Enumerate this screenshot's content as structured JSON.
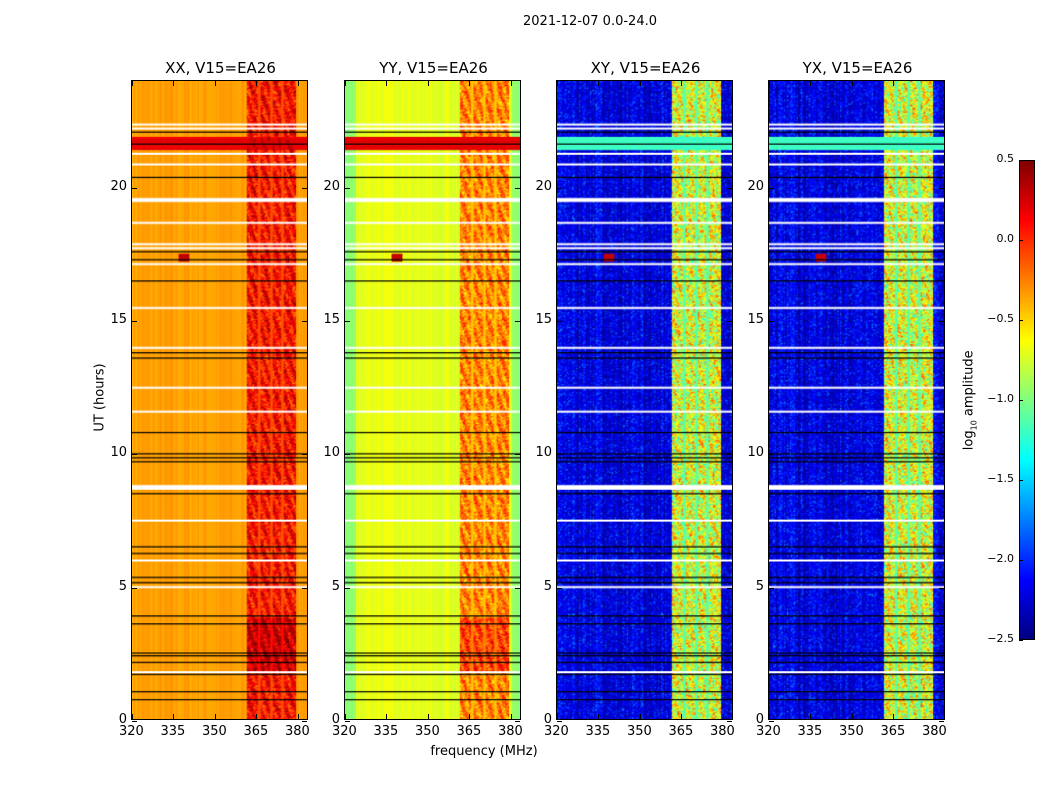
{
  "chart_data": {
    "type": "heatmap",
    "title": "2021-12-07 0.0-24.0",
    "xlabel": "frequency (MHz)",
    "ylabel": "UT (hours)",
    "xlim": [
      320,
      384
    ],
    "ylim": [
      0,
      24
    ],
    "xticks": [
      "320",
      "335",
      "350",
      "365",
      "380"
    ],
    "xtick_values": [
      320,
      335,
      350,
      365,
      380
    ],
    "yticks": [
      "0",
      "5",
      "10",
      "15",
      "20"
    ],
    "ytick_values": [
      0,
      5,
      10,
      15,
      20
    ],
    "panels": [
      {
        "title": "XX, V15=EA26",
        "pol": "XX",
        "base_level": -0.35,
        "band_level": 0.05
      },
      {
        "title": "YY, V15=EA26",
        "pol": "YY",
        "base_level": -0.7,
        "band_level": -0.3
      },
      {
        "title": "XY, V15=EA26",
        "pol": "XY",
        "base_level": -2.35,
        "band_level": -0.8
      },
      {
        "title": "YX, V15=EA26",
        "pol": "YX",
        "base_level": -2.35,
        "band_level": -0.8
      }
    ],
    "bright_band_mhz": [
      362,
      380
    ],
    "flagged_white_hours": [
      22.4,
      22.25,
      21.3,
      20.9,
      19.6,
      18.7,
      17.9,
      17.75,
      17.15,
      15.5,
      14.0,
      12.5,
      11.6,
      8.8,
      8.7,
      7.5,
      6.0,
      5.0,
      1.8
    ],
    "flagged_black_hours": [
      22.1,
      21.65,
      20.4,
      17.6,
      17.3,
      16.5,
      13.8,
      13.6,
      10.8,
      10.0,
      9.85,
      9.7,
      8.5,
      6.5,
      6.25,
      5.35,
      5.15,
      3.9,
      3.6,
      2.5,
      2.4,
      2.15,
      1.7,
      1.05,
      0.75
    ],
    "colorbar": {
      "label": "log10 amplitude",
      "label_main": "log",
      "label_sub": "10",
      "label_rest": " amplitude",
      "range": [
        -2.5,
        0.5
      ],
      "ticks": [
        "0.5",
        "0.0",
        "−0.5",
        "−1.0",
        "−1.5",
        "−2.0",
        "−2.5"
      ],
      "tick_values": [
        0.5,
        0,
        -0.5,
        -1,
        -1.5,
        -2,
        -2.5
      ],
      "colormap": "jet"
    }
  }
}
